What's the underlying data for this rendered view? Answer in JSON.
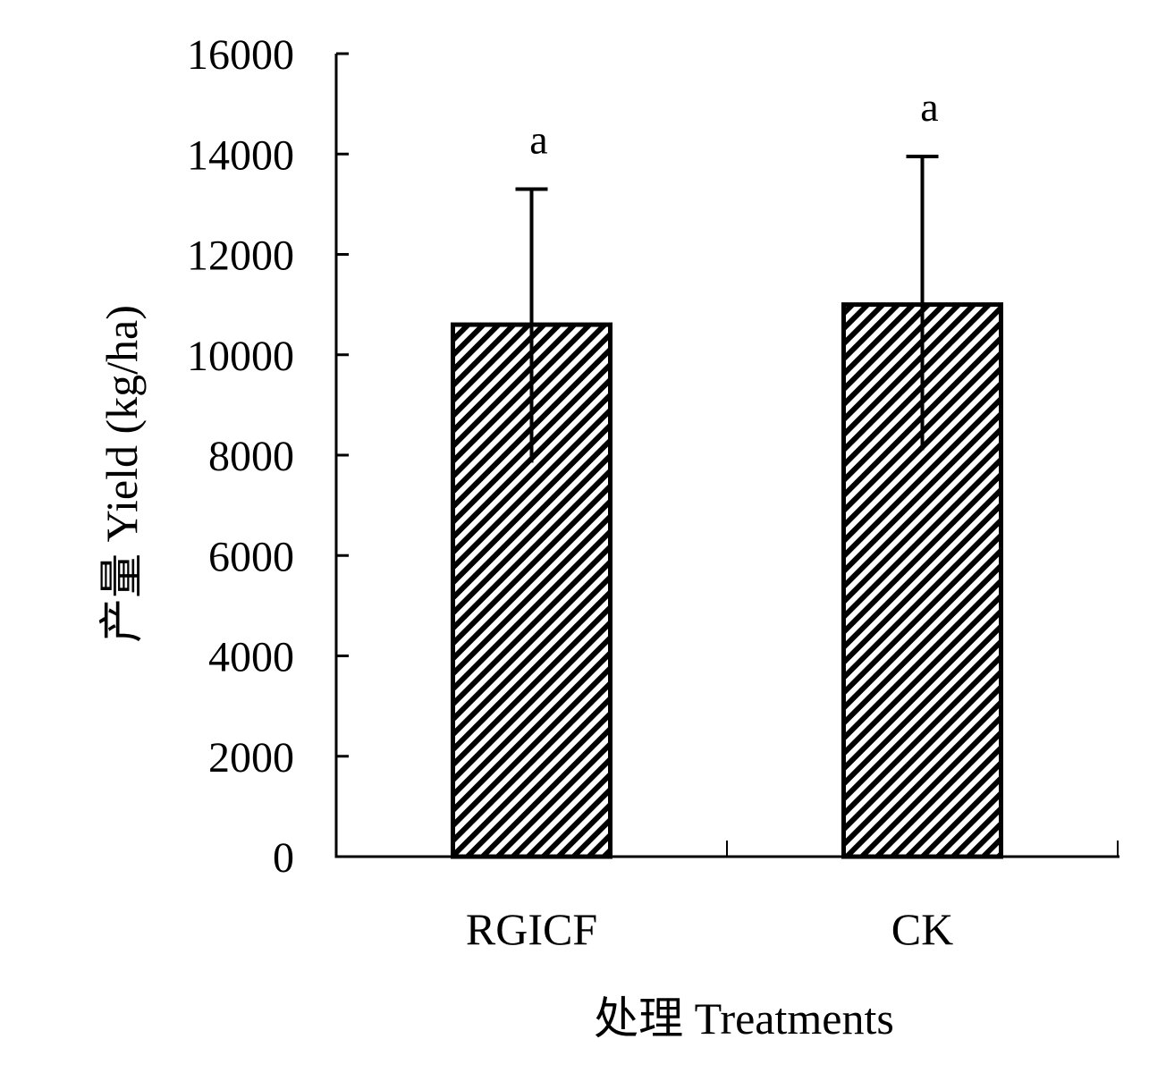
{
  "chart_data": {
    "type": "bar",
    "categories": [
      "RGICF",
      "CK"
    ],
    "values": [
      10600,
      11000
    ],
    "error_upper": [
      13300,
      13950
    ],
    "error_lower": [
      7850,
      8100
    ],
    "significance_letters": [
      "a",
      "a"
    ],
    "xlabel": "处理 Treatments",
    "ylabel": "产量 Yield (kg/ha)",
    "ylim": [
      0,
      16000
    ],
    "yticks": [
      "0",
      "2000",
      "4000",
      "6000",
      "8000",
      "10000",
      "12000",
      "14000",
      "16000"
    ],
    "grid": false,
    "legend": "none",
    "bar_pattern": "diagonal-hatch",
    "colors": {
      "bar_fill": "#ffffff",
      "hatch": "#000000",
      "stroke": "#000000"
    }
  }
}
